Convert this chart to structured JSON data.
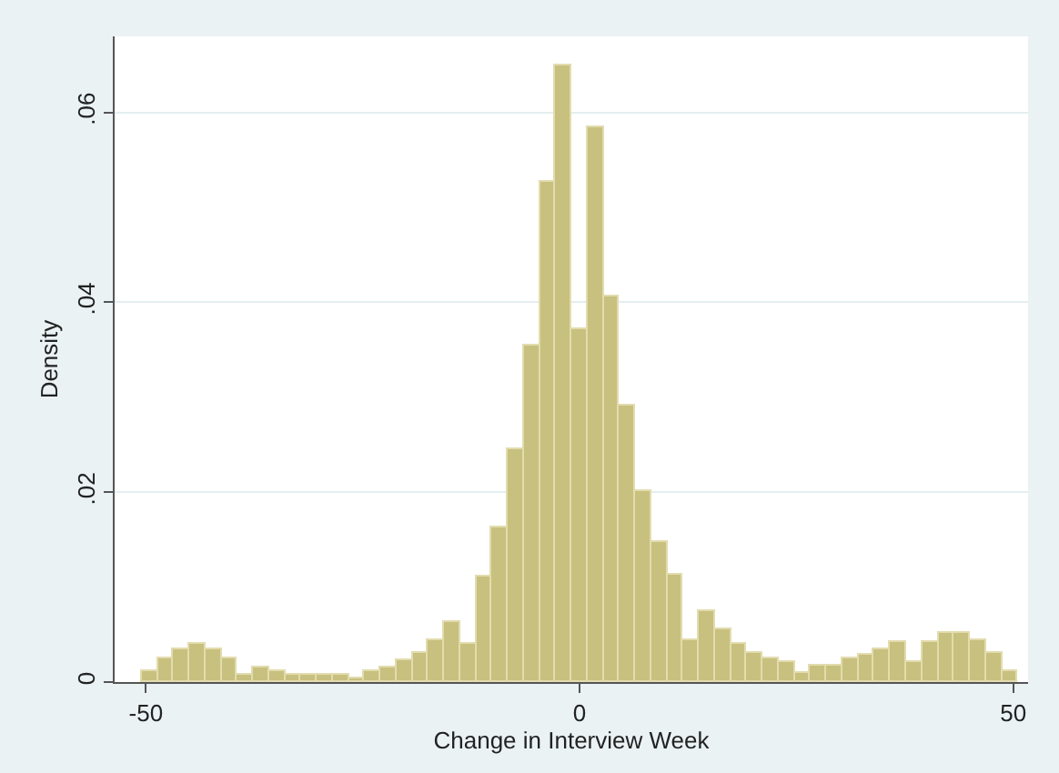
{
  "chart_data": {
    "type": "histogram",
    "xlabel": "Change in Interview Week",
    "ylabel": "Density",
    "bins": [
      -50.5,
      -48.66,
      -46.83,
      -44.99,
      -43.15,
      -41.32,
      -39.48,
      -37.65,
      -35.81,
      -33.97,
      -32.14,
      -30.3,
      -28.46,
      -26.63,
      -24.79,
      -22.95,
      -21.12,
      -19.28,
      -17.45,
      -15.61,
      -13.77,
      -11.94,
      -10.1,
      -8.26,
      -6.43,
      -4.59,
      -2.75,
      -0.92,
      0.92,
      2.75,
      4.59,
      6.43,
      8.26,
      10.1,
      11.94,
      13.77,
      15.61,
      17.45,
      19.28,
      21.12,
      22.95,
      24.79,
      26.63,
      28.46,
      30.3,
      32.14,
      33.97,
      35.81,
      37.65,
      39.48,
      41.32,
      43.15,
      44.99,
      46.83,
      48.66,
      50.5
    ],
    "values": [
      0.0012,
      0.0024,
      0.0035,
      0.004,
      0.0035,
      0.0024,
      0.0008,
      0.0016,
      0.0011,
      0.0008,
      0.0008,
      0.0008,
      0.0008,
      0.0004,
      0.0012,
      0.0016,
      0.0023,
      0.003,
      0.0045,
      0.0064,
      0.0041,
      0.0112,
      0.0163,
      0.0246,
      0.0355,
      0.0526,
      0.065,
      0.0372,
      0.0584,
      0.0406,
      0.0291,
      0.0201,
      0.0147,
      0.0113,
      0.0044,
      0.0074,
      0.0055,
      0.004,
      0.003,
      0.0024,
      0.0021,
      0.0009,
      0.0017,
      0.0017,
      0.0024,
      0.0029,
      0.0035,
      0.0042,
      0.0021,
      0.0043,
      0.0051,
      0.0051,
      0.0044,
      0.003,
      0.0012
    ],
    "color": "#c8c07e",
    "xlim": [
      -53.6,
      51.7
    ],
    "xticks": [
      -50,
      0,
      50
    ],
    "ylim": [
      0,
      0.068
    ],
    "yticks": [
      0,
      {
        "value": 0.02,
        "label": ".02"
      },
      {
        "value": 0.04,
        "label": ".04"
      },
      {
        "value": 0.06,
        "label": ".06"
      }
    ],
    "grid": "y"
  }
}
